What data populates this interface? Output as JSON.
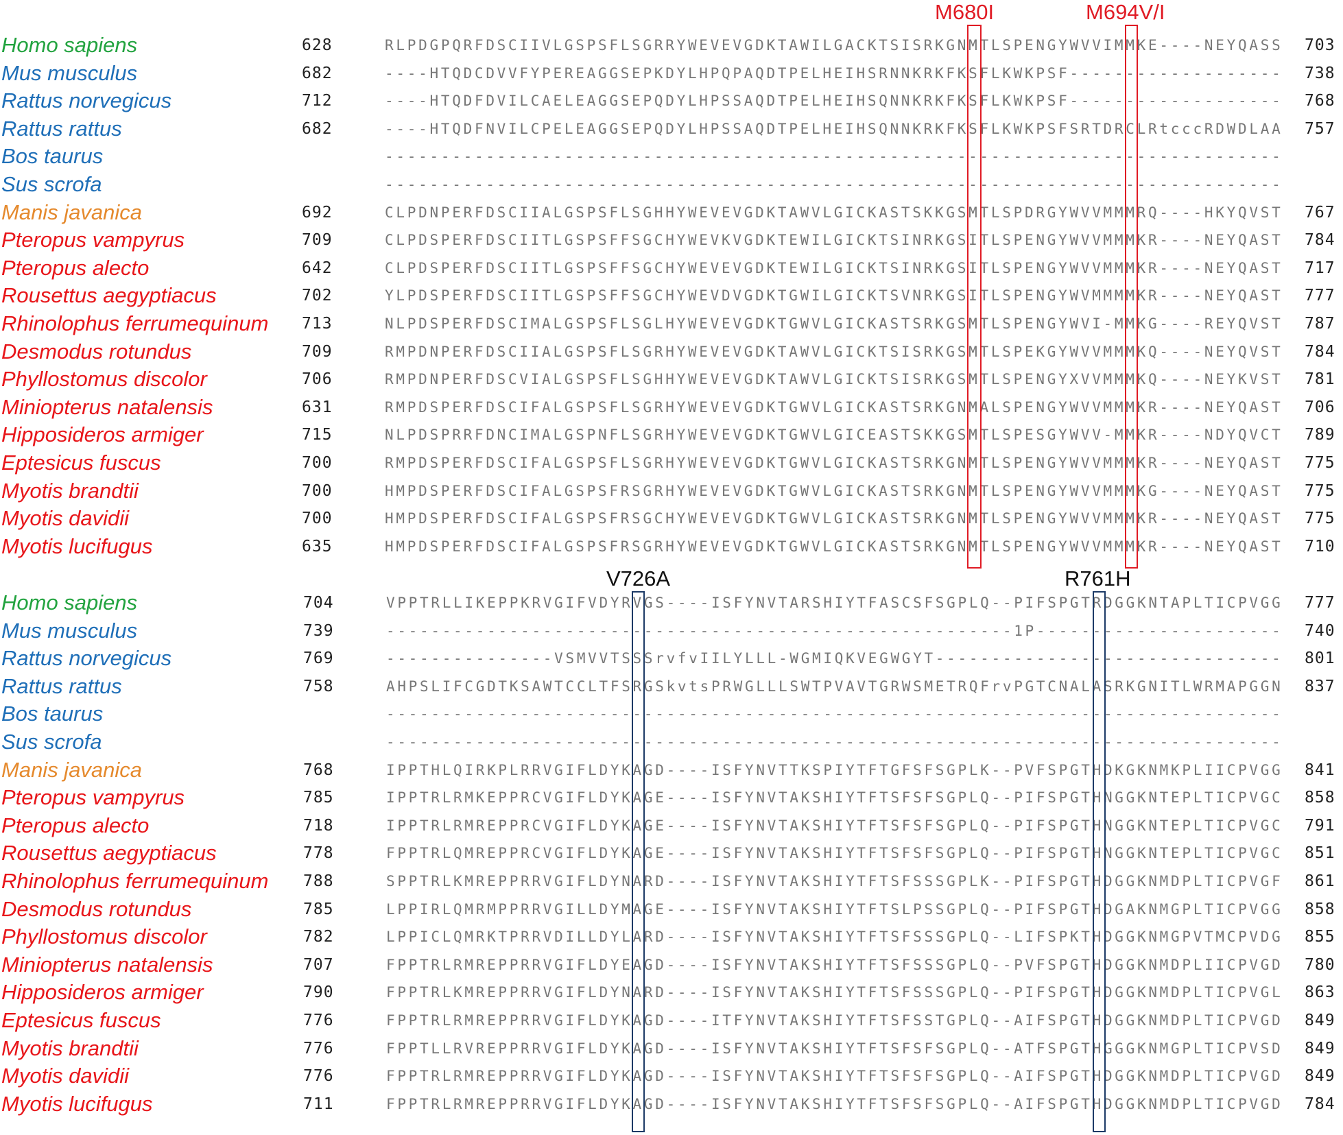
{
  "mutation_labels": {
    "m680i": "M680I",
    "m694vi": "M694V/I",
    "v726a": "V726A",
    "r761h": "R761H"
  },
  "colors": {
    "human": "#22a33f",
    "rodent_ungulate": "#1f6fb8",
    "pangolin": "#e58a2e",
    "bat": "#e8161a",
    "box_upper": "#e01b24",
    "box_lower": "#1c3a66"
  },
  "blocks": [
    {
      "rows": [
        {
          "species": "Homo sapiens",
          "group": "human",
          "start": "628",
          "seq": "RLPDGPQRFDSCIIVLGSPSFLSGRRYWEVEVGDKTAWILGACKTSISRKGNMTLSPENGYWVVIMMKE----NEYQASS",
          "end": "703"
        },
        {
          "species": "Mus musculus",
          "group": "rodent",
          "start": "682",
          "seq": "----HTQDCDVVFYPEREAGGSEPKDYLHPQPAQDTPELHEIHSRNNKRKFKSFLKWKPSF-------------------",
          "end": "738"
        },
        {
          "species": "Rattus norvegicus",
          "group": "rodent",
          "start": "712",
          "seq": "----HTQDFDVILCAELEAGGSEPQDYLHPSSAQDTPELHEIHSQNNKRKFKSFLKWKPSF-------------------",
          "end": "768"
        },
        {
          "species": "Rattus rattus",
          "group": "rodent",
          "start": "682",
          "seq": "----HTQDFNVILCPELEAGGSEPQDYLHPSSAQDTPELHEIHSQNNKRKFKSFLKWKPSFSRTDRCLRtcccRDWDLAA",
          "end": "757"
        },
        {
          "species": "Bos taurus",
          "group": "rodent",
          "start": "",
          "seq": "--------------------------------------------------------------------------------",
          "end": ""
        },
        {
          "species": "Sus scrofa",
          "group": "rodent",
          "start": "",
          "seq": "--------------------------------------------------------------------------------",
          "end": ""
        },
        {
          "species": "Manis javanica",
          "group": "pangolin",
          "start": "692",
          "seq": "CLPDNPERFDSCIIALGSPSFLSGHHYWEVEVGDKTAWVLGICKASTSKKGSMTLSPDRGYWVVMMMRQ----HKYQVST",
          "end": "767"
        },
        {
          "species": "Pteropus vampyrus",
          "group": "bat",
          "start": "709",
          "seq": "CLPDSPERFDSCIITLGSPSFFSGCHYWEVKVGDKTEWILGICKTSINRKGSITLSPENGYWVVMMMKR----NEYQAST",
          "end": "784"
        },
        {
          "species": "Pteropus alecto",
          "group": "bat",
          "start": "642",
          "seq": "CLPDSPERFDSCIITLGSPSFFSGCHYWEVEVGDKTEWILGICKTSINRKGSITLSPENGYWVVMMMKR----NEYQAST",
          "end": "717"
        },
        {
          "species": "Rousettus aegyptiacus",
          "group": "bat",
          "start": "702",
          "seq": "YLPDSPERFDSCIITLGSPSFFSGCHYWEVDVGDKTGWILGICKTSVNRKGSITLSPENGYWVMMMMKR----NEYQAST",
          "end": "777"
        },
        {
          "species": "Rhinolophus ferrumequinum",
          "group": "bat",
          "start": "713",
          "seq": "NLPDSPERFDSCIMALGSPSFLSGLHYWEVEVGDKTGWVLGICKASTSRKGSMTLSPENGYWVI-MMKG----REYQVST",
          "end": "787"
        },
        {
          "species": "Desmodus rotundus",
          "group": "bat",
          "start": "709",
          "seq": "RMPDNPERFDSCIIALGSPSFLSGRHYWEVEVGDKTAWVLGICKTSISRKGSMTLSPEKGYWVVMMMKQ----NEYQVST",
          "end": "784"
        },
        {
          "species": "Phyllostomus discolor",
          "group": "bat",
          "start": "706",
          "seq": "RMPDNPERFDSCVIALGSPSFLSGHHYWEVEVGDKTAWVLGICKTSISRKGSMTLSPENGYXVVMMMKQ----NEYKVST",
          "end": "781"
        },
        {
          "species": "Miniopterus natalensis",
          "group": "bat",
          "start": "631",
          "seq": "RMPDSPERFDSCIFALGSPSFLSGRHYWEVEVGDKTGWVLGICKASTSRKGNMALSPENGYWVVMMMKR----NEYQAST",
          "end": "706"
        },
        {
          "species": "Hipposideros armiger",
          "group": "bat",
          "start": "715",
          "seq": "NLPDSPRRFDNCIMALGSPNFLSGRHYWEVEVGDKTGWVLGICEASTSKKGSMTLSPESGYWVV-MMKR----NDYQVCT",
          "end": "789"
        },
        {
          "species": "Eptesicus fuscus",
          "group": "bat",
          "start": "700",
          "seq": "RMPDSPERFDSCIFALGSPSFLSGRHYWEVEVGDKTGWVLGICKASTSRKGNMTLSPENGYWVVMMMKR----NEYQAST",
          "end": "775"
        },
        {
          "species": "Myotis brandtii",
          "group": "bat",
          "start": "700",
          "seq": "HMPDSPERFDSCIFALGSPSFRSGRHYWEVEVGDKTGWVLGICKASTSRKGNMTLSPENGYWVVMMMKG----NEYQAST",
          "end": "775"
        },
        {
          "species": "Myotis davidii",
          "group": "bat",
          "start": "700",
          "seq": "HMPDSPERFDSCIFALGSPSFRSGCHYWEVEVGDKTGWVLGICKASTSRKGNMTLSPENGYWVVMMMKR----NEYQAST",
          "end": "775"
        },
        {
          "species": "Myotis lucifugus",
          "group": "bat",
          "start": "635",
          "seq": "HMPDSPERFDSCIFALGSPSFRSGRHYWEVEVGDKTGWVLGICKASTSRKGNMTLSPENGYWVVMMMKR----NEYQAST",
          "end": "710"
        }
      ]
    },
    {
      "rows": [
        {
          "species": "Homo sapiens",
          "group": "human",
          "start": "704",
          "seq": "VPPTRLLIKEPPKRVGIFVDYRVGS----ISFYNVTARSHIYTFASCSFSGPLQ--PIFSPGTRDGGKNTAPLTICPVGG",
          "end": "777"
        },
        {
          "species": "Mus musculus",
          "group": "rodent",
          "start": "739",
          "seq": "--------------------------------------------------------1P----------------------",
          "end": "740"
        },
        {
          "species": "Rattus norvegicus",
          "group": "rodent",
          "start": "769",
          "seq": "---------------VSMVVTSSSrvfvIILYLLL-WGMIQKVEGWGYT-------------------------------",
          "end": "801"
        },
        {
          "species": "Rattus rattus",
          "group": "rodent",
          "start": "758",
          "seq": "AHPSLIFCGDTKSAWTCCLTFSRGSkvtsPRWGLLLSWTPVAVTGRWSMETRQFrvPGTCNALASRKGNITLWRMAPGGN",
          "end": "837"
        },
        {
          "species": "Bos taurus",
          "group": "rodent",
          "start": "",
          "seq": "--------------------------------------------------------------------------------",
          "end": ""
        },
        {
          "species": "Sus scrofa",
          "group": "rodent",
          "start": "",
          "seq": "--------------------------------------------------------------------------------",
          "end": ""
        },
        {
          "species": "Manis javanica",
          "group": "pangolin",
          "start": "768",
          "seq": "IPPTHLQIRKPLRRVGIFLDYKAGD----ISFYNVTTKSPIYTFTGFSFSGPLK--PVFSPGTHDKGKNMKPLIICPVGG",
          "end": "841"
        },
        {
          "species": "Pteropus vampyrus",
          "group": "bat",
          "start": "785",
          "seq": "IPPTRLRMKEPPRCVGIFLDYKAGE----ISFYNVTAKSHIYTFTSFSFSGPLQ--PIFSPGTHNGGKNTEPLTICPVGC",
          "end": "858"
        },
        {
          "species": "Pteropus alecto",
          "group": "bat",
          "start": "718",
          "seq": "IPPTRLRMREPPRCVGIFLDYKAGE----ISFYNVTAKSHIYTFTSFSFSGPLQ--PIFSPGTHNGGKNTEPLTICPVGC",
          "end": "791"
        },
        {
          "species": "Rousettus aegyptiacus",
          "group": "bat",
          "start": "778",
          "seq": "FPPTRLQMREPPRCVGIFLDYKAGE----ISFYNVTAKSHIYTFTSFSFSGPLQ--PIFSPGTHNGGKNTEPLTICPVGC",
          "end": "851"
        },
        {
          "species": "Rhinolophus ferrumequinum",
          "group": "bat",
          "start": "788",
          "seq": "SPPTRLKMREPPRRVGIFLDYNARD----ISFYNVTAKSHIYTFTSFSSSGPLK--PIFSPGTHDGGKNMDPLTICPVGF",
          "end": "861"
        },
        {
          "species": "Desmodus rotundus",
          "group": "bat",
          "start": "785",
          "seq": "LPPIRLQMRMPPRRVGILLDYMAGE----ISFYNVTAKSHIYTFTSLPSSGPLQ--PIFSPGTHDGAKNMGPLTICPVGG",
          "end": "858"
        },
        {
          "species": "Phyllostomus discolor",
          "group": "bat",
          "start": "782",
          "seq": "LPPICLQMRKTPRRVDILLDYLARD----ISFYNVTAKSHIYTFTSFSSSGPLQ--LIFSPKTHDGGKNMGPVTMCPVDG",
          "end": "855"
        },
        {
          "species": "Miniopterus natalensis",
          "group": "bat",
          "start": "707",
          "seq": "FPPTRLRMREPPRRVGIFLDYEAGD----ISFYNVTAKSHIYTFTSFSSSGPLQ--PVFSPGTHDGGKNMDPLIICPVGD",
          "end": "780"
        },
        {
          "species": "Hipposideros armiger",
          "group": "bat",
          "start": "790",
          "seq": "FPPTRLKMREPPRRVGIFLDYNARD----ISFYNVTAKSHIYTFTSFSSSGPLQ--PIFSPGTHDGGKNMDPLTICPVGL",
          "end": "863"
        },
        {
          "species": "Eptesicus fuscus",
          "group": "bat",
          "start": "776",
          "seq": "FPPTRLRMREPPRRVGIFLDYKAGD----ITFYNVTAKSHIYTFTSFSSTGPLQ--AIFSPGTHDGGKNMDPLTICPVGD",
          "end": "849"
        },
        {
          "species": "Myotis brandtii",
          "group": "bat",
          "start": "776",
          "seq": "FPPTLLRVREPPRRVGIFLDYKAGD----ISFYNVTAKSHIYTFTSFSFSGPLQ--ATFSPGTHGGGKNMGPLTICPVSD",
          "end": "849"
        },
        {
          "species": "Myotis davidii",
          "group": "bat",
          "start": "776",
          "seq": "FPPTRLRMREPPRRVGIFLDYKAGD----ISFYNVTAKSHIYTFTSFSFSGPLQ--AIFSPGTHDGGKNMDPLTICPVGD",
          "end": "849"
        },
        {
          "species": "Myotis lucifugus",
          "group": "bat",
          "start": "711",
          "seq": "FPPTRLRMREPPRRVGIFLDYKAGD----ISFYNVTAKSHIYTFTSFSFSGPLQ--AIFSPGTHDGGKNMDPLTICPVGD",
          "end": "784"
        }
      ]
    }
  ]
}
